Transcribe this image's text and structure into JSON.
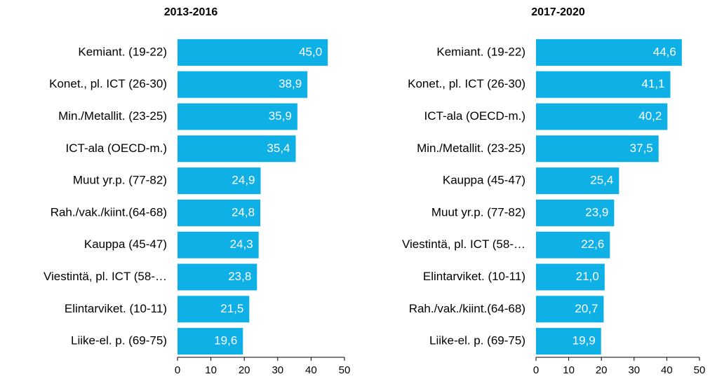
{
  "chart_data": [
    {
      "type": "bar",
      "orientation": "horizontal",
      "title": "2013-2016",
      "categories": [
        "Kemiant. (19-22)",
        "Konet., pl. ICT (26-30)",
        "Min./Metallit. (23-25)",
        "ICT-ala (OECD-m.)",
        "Muut yr.p. (77-82)",
        "Rah./vak./kiint.(64-68)",
        "Kauppa (45-47)",
        "Viestintä, pl. ICT (58-…",
        "Elintarviket. (10-11)",
        "Liike-el. p. (69-75)"
      ],
      "values": [
        45.0,
        38.9,
        35.9,
        35.4,
        24.9,
        24.8,
        24.3,
        23.8,
        21.5,
        19.6
      ],
      "value_labels": [
        "45,0",
        "38,9",
        "35,9",
        "35,4",
        "24,9",
        "24,8",
        "24,3",
        "23,8",
        "21,5",
        "19,6"
      ],
      "color": "#0fb0e6",
      "xlim": [
        0,
        50
      ],
      "xticks": [
        0,
        10,
        20,
        30,
        40,
        50
      ]
    },
    {
      "type": "bar",
      "orientation": "horizontal",
      "title": "2017-2020",
      "categories": [
        "Kemiant. (19-22)",
        "Konet., pl. ICT (26-30)",
        "ICT-ala (OECD-m.)",
        "Min./Metallit. (23-25)",
        "Kauppa (45-47)",
        "Muut yr.p. (77-82)",
        "Viestintä, pl. ICT (58-…",
        "Elintarviket. (10-11)",
        "Rah./vak./kiint.(64-68)",
        "Liike-el. p. (69-75)"
      ],
      "values": [
        44.6,
        41.1,
        40.2,
        37.5,
        25.4,
        23.9,
        22.6,
        21.0,
        20.7,
        19.9
      ],
      "value_labels": [
        "44,6",
        "41,1",
        "40,2",
        "37,5",
        "25,4",
        "23,9",
        "22,6",
        "21,0",
        "20,7",
        "19,9"
      ],
      "color": "#0fb0e6",
      "xlim": [
        0,
        50
      ],
      "xticks": [
        0,
        10,
        20,
        30,
        40,
        50
      ]
    }
  ]
}
